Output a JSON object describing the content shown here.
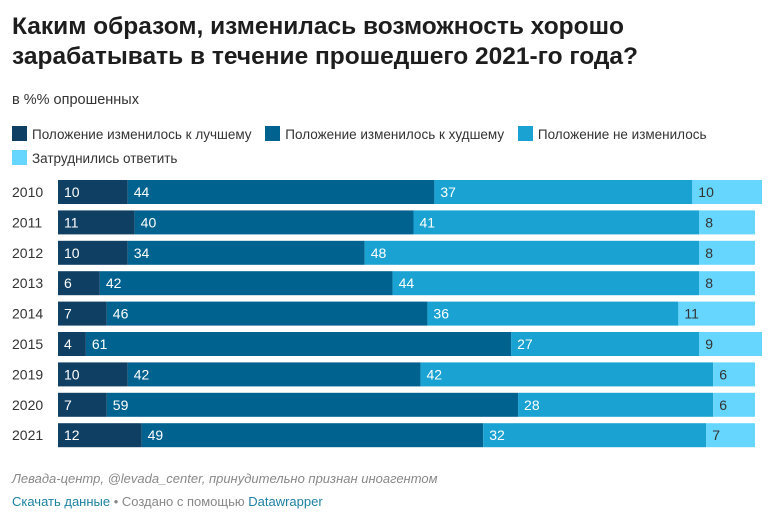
{
  "title": "Каким образом, изменилась возможность хорошо зарабатывать в течение прошедшего 2021-го года?",
  "subtitle": "в %% опрошенных",
  "source": "Левада-центр, @levada_center, принудительно признан иноагентом",
  "credit": {
    "link_text": "Скачать данные",
    "separator": " • Создано с помощью ",
    "tool": "Datawrapper"
  },
  "colors": {
    "better": "#0f3f63",
    "worse": "#00628f",
    "unchanged": "#1aa2d2",
    "hard_to_say": "#66d6ff"
  },
  "chart_data": {
    "type": "bar",
    "orientation": "horizontal",
    "stacked": true,
    "categories": [
      "2010",
      "2011",
      "2012",
      "2013",
      "2014",
      "2015",
      "2019",
      "2020",
      "2021"
    ],
    "series": [
      {
        "name": "Положение изменилось к лучшему",
        "color_key": "better",
        "values": [
          10,
          11,
          10,
          6,
          7,
          4,
          10,
          7,
          12
        ]
      },
      {
        "name": "Положение изменилось к худшему",
        "color_key": "worse",
        "values": [
          44,
          40,
          34,
          42,
          46,
          61,
          42,
          59,
          49
        ]
      },
      {
        "name": "Положение не изменилось",
        "color_key": "unchanged",
        "values": [
          37,
          41,
          48,
          44,
          36,
          27,
          42,
          28,
          32
        ]
      },
      {
        "name": "Затруднились ответить",
        "color_key": "hard_to_say",
        "values": [
          10,
          8,
          8,
          8,
          11,
          9,
          6,
          6,
          7
        ]
      }
    ],
    "xlim": [
      0,
      101
    ],
    "grid": false,
    "legend_position": "top"
  }
}
